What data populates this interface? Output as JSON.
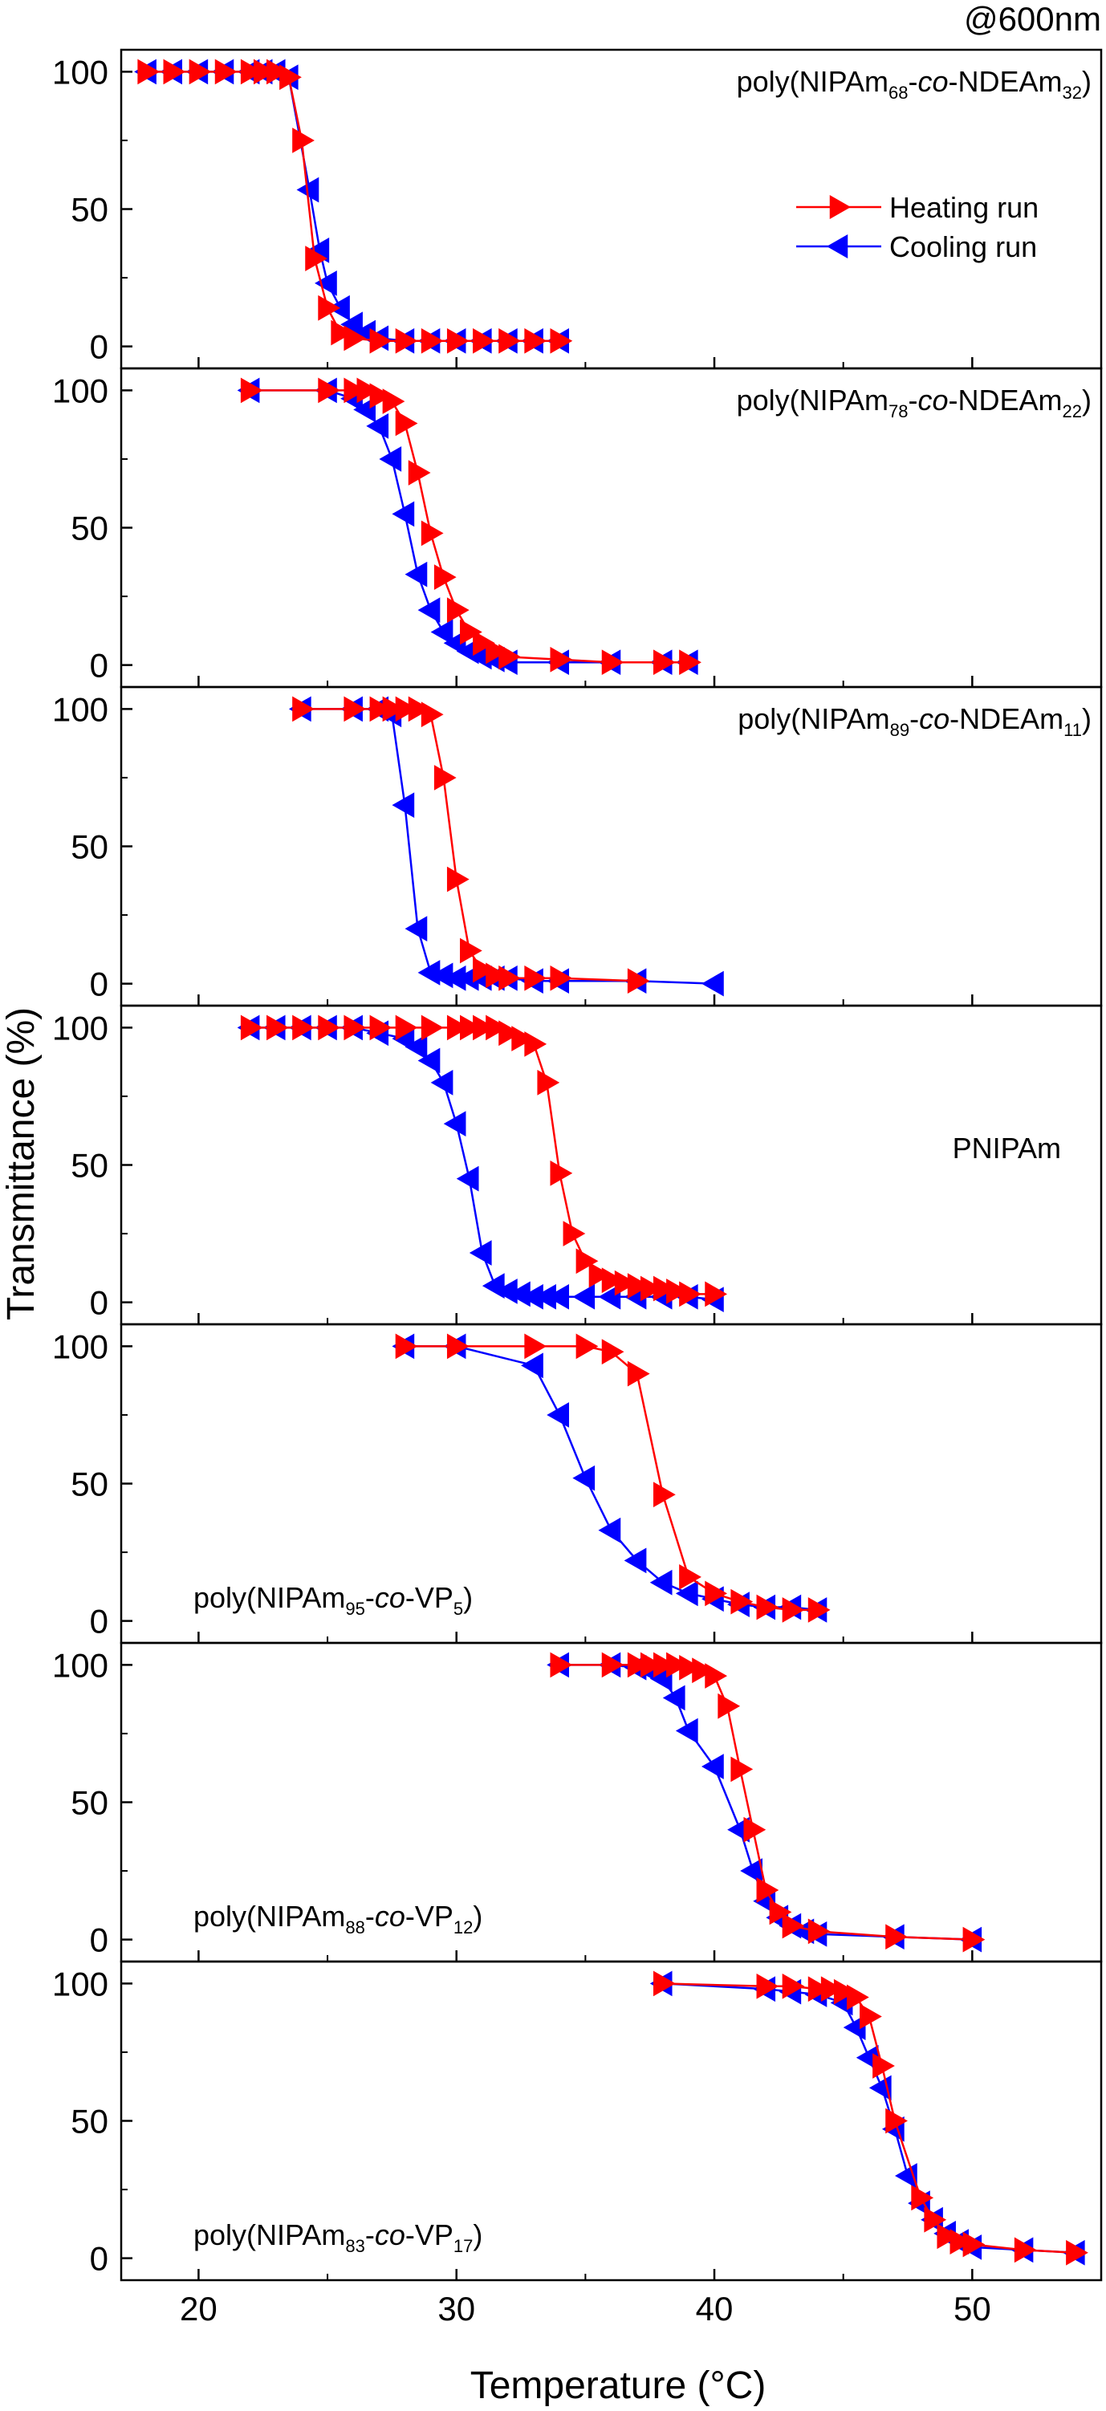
{
  "corner_label": "@600nm",
  "xlabel": "Temperature (°C)",
  "ylabel": "Transmittance (%)",
  "x_ticks": [
    20,
    30,
    40,
    50
  ],
  "y_ticks": [
    0,
    50,
    100
  ],
  "legend": {
    "heating": "Heating run",
    "cooling": "Cooling run",
    "placement": "top-right of first panel"
  },
  "colors": {
    "heating": "#ff0000",
    "cooling": "#0000ff"
  },
  "chart_data": [
    {
      "type": "line",
      "label": {
        "pre": "poly(NIPAm",
        "s1": "68",
        "mid": "-",
        "it": "co",
        "mid2": "-NDEAm",
        "s2": "32",
        "post": ")",
        "place": "top-right"
      },
      "xlim": [
        17,
        55
      ],
      "ylim": [
        -8,
        108
      ],
      "series": [
        {
          "name": "Heating run",
          "x": [
            18,
            19,
            20,
            21,
            22,
            22.5,
            23,
            23.5,
            24,
            24.5,
            25,
            25.5,
            26,
            27,
            28,
            29,
            30,
            31,
            32,
            33,
            34
          ],
          "y": [
            100,
            100,
            100,
            100,
            100,
            100,
            100,
            98,
            75,
            32,
            14,
            5,
            3,
            2,
            2,
            2,
            2,
            2,
            2,
            2,
            2
          ]
        },
        {
          "name": "Cooling run",
          "x": [
            34,
            33,
            32,
            31,
            30,
            29,
            28,
            27,
            26.5,
            26,
            25.5,
            25,
            24.7,
            24.3,
            23.5,
            23,
            22.5,
            22,
            21,
            20,
            19,
            18
          ],
          "y": [
            2,
            2,
            2,
            2,
            2,
            2,
            2,
            3,
            5,
            8,
            14,
            23,
            35,
            57,
            98,
            100,
            100,
            100,
            100,
            100,
            100,
            100
          ]
        }
      ]
    },
    {
      "type": "line",
      "label": {
        "pre": "poly(NIPAm",
        "s1": "78",
        "mid": "-",
        "it": "co",
        "mid2": "-NDEAm",
        "s2": "22",
        "post": ")",
        "place": "top-right"
      },
      "xlim": [
        17,
        55
      ],
      "ylim": [
        -8,
        108
      ],
      "series": [
        {
          "name": "Heating run",
          "x": [
            22,
            25,
            26,
            26.5,
            27,
            27.5,
            28,
            28.5,
            29,
            29.5,
            30,
            30.5,
            31,
            31.5,
            32,
            34,
            36,
            38,
            39
          ],
          "y": [
            100,
            100,
            100,
            100,
            98,
            96,
            88,
            70,
            48,
            32,
            20,
            12,
            8,
            5,
            3,
            2,
            1,
            1,
            1
          ]
        },
        {
          "name": "Cooling run",
          "x": [
            39,
            38,
            36,
            34,
            32,
            31.5,
            31,
            30.5,
            30,
            29.5,
            29,
            28.5,
            28,
            27.5,
            27,
            26.5,
            26,
            25,
            22
          ],
          "y": [
            1,
            1,
            1,
            1,
            1,
            2,
            3,
            5,
            8,
            12,
            20,
            33,
            55,
            75,
            87,
            93,
            97,
            100,
            100
          ]
        }
      ]
    },
    {
      "type": "line",
      "label": {
        "pre": "poly(NIPAm",
        "s1": "89",
        "mid": "-",
        "it": "co",
        "mid2": "-NDEAm",
        "s2": "11",
        "post": ")",
        "place": "top-right"
      },
      "xlim": [
        17,
        55
      ],
      "ylim": [
        -8,
        108
      ],
      "series": [
        {
          "name": "Heating run",
          "x": [
            24,
            26,
            27,
            27.5,
            28,
            28.5,
            29,
            29.5,
            30,
            30.5,
            31,
            31.5,
            32,
            33,
            34,
            37
          ],
          "y": [
            100,
            100,
            100,
            100,
            100,
            100,
            98,
            75,
            38,
            12,
            5,
            3,
            2,
            2,
            2,
            1
          ]
        },
        {
          "name": "Cooling run",
          "x": [
            40,
            37,
            34,
            33,
            32,
            31.5,
            31,
            30.5,
            30,
            29.5,
            29,
            28.5,
            28,
            27.5,
            27,
            26,
            24
          ],
          "y": [
            0,
            1,
            1,
            1,
            2,
            2,
            2,
            2,
            2,
            3,
            4,
            20,
            65,
            98,
            100,
            100,
            100
          ]
        }
      ]
    },
    {
      "type": "line",
      "label": {
        "pre": "PNIPAm",
        "s1": "",
        "mid": "",
        "it": "",
        "mid2": "",
        "s2": "",
        "post": "",
        "place": "mid-right"
      },
      "xlim": [
        17,
        55
      ],
      "ylim": [
        -8,
        108
      ],
      "series": [
        {
          "name": "Heating run",
          "x": [
            22,
            23,
            24,
            25,
            26,
            27,
            28,
            29,
            30,
            30.5,
            31,
            31.5,
            32,
            32.5,
            33,
            33.5,
            34,
            34.5,
            35,
            35.5,
            36,
            36.5,
            37,
            37.5,
            38,
            38.5,
            39,
            40
          ],
          "y": [
            100,
            100,
            100,
            100,
            100,
            100,
            100,
            100,
            100,
            100,
            100,
            100,
            98,
            96,
            94,
            80,
            47,
            25,
            15,
            10,
            8,
            7,
            6,
            5,
            5,
            4,
            3,
            3
          ]
        },
        {
          "name": "Cooling run",
          "x": [
            40,
            39,
            38,
            37,
            36,
            35,
            34,
            33.5,
            33,
            32.5,
            32,
            31.5,
            31,
            30.5,
            30,
            29.5,
            29,
            28.5,
            28,
            27,
            26,
            25,
            24,
            23,
            22
          ],
          "y": [
            1,
            2,
            2,
            2,
            2,
            2,
            2,
            2,
            2,
            3,
            4,
            6,
            18,
            45,
            65,
            80,
            88,
            93,
            96,
            98,
            100,
            100,
            100,
            100,
            100
          ]
        }
      ]
    },
    {
      "type": "line",
      "label": {
        "pre": "poly(NIPAm",
        "s1": "95",
        "mid": "-",
        "it": "co",
        "mid2": "-VP",
        "s2": "5",
        "post": ")",
        "place": "bottom-left"
      },
      "xlim": [
        17,
        55
      ],
      "ylim": [
        -8,
        108
      ],
      "series": [
        {
          "name": "Heating run",
          "x": [
            28,
            30,
            33,
            35,
            36,
            37,
            38,
            39,
            40,
            41,
            42,
            43,
            44
          ],
          "y": [
            100,
            100,
            100,
            100,
            98,
            90,
            46,
            16,
            10,
            7,
            5,
            4,
            4
          ]
        },
        {
          "name": "Cooling run",
          "x": [
            44,
            43,
            42,
            41,
            40,
            39,
            38,
            37,
            36,
            35,
            34,
            33,
            30,
            28
          ],
          "y": [
            4,
            5,
            5,
            6,
            8,
            10,
            14,
            22,
            33,
            52,
            75,
            93,
            100,
            100
          ]
        }
      ]
    },
    {
      "type": "line",
      "label": {
        "pre": "poly(NIPAm",
        "s1": "88",
        "mid": "-",
        "it": "co",
        "mid2": "-VP",
        "s2": "12",
        "post": ")",
        "place": "bottom-left"
      },
      "xlim": [
        17,
        55
      ],
      "ylim": [
        -8,
        108
      ],
      "series": [
        {
          "name": "Heating run",
          "x": [
            34,
            36,
            37,
            37.5,
            38,
            38.5,
            39,
            39.5,
            40,
            40.5,
            41,
            41.5,
            42,
            42.5,
            43,
            44,
            47,
            50
          ],
          "y": [
            100,
            100,
            100,
            100,
            100,
            100,
            99,
            98,
            96,
            85,
            62,
            40,
            18,
            10,
            5,
            3,
            1,
            0
          ]
        },
        {
          "name": "Cooling run",
          "x": [
            50,
            47,
            44,
            43.5,
            43,
            42.5,
            42,
            41.5,
            41,
            40,
            39,
            38.5,
            38,
            37.5,
            37,
            36,
            34
          ],
          "y": [
            0,
            1,
            2,
            3,
            5,
            8,
            14,
            25,
            40,
            63,
            76,
            88,
            95,
            98,
            99,
            100,
            100
          ]
        }
      ]
    },
    {
      "type": "line",
      "label": {
        "pre": "poly(NIPAm",
        "s1": "83",
        "mid": "-",
        "it": "co",
        "mid2": "-VP",
        "s2": "17",
        "post": ")",
        "place": "bottom-left"
      },
      "xlim": [
        17,
        55
      ],
      "ylim": [
        -8,
        108
      ],
      "series": [
        {
          "name": "Heating run",
          "x": [
            38,
            42,
            43,
            44,
            44.5,
            45,
            45.5,
            46,
            46.5,
            47,
            48,
            48.5,
            49,
            49.5,
            50,
            52,
            54
          ],
          "y": [
            100,
            99,
            99,
            98,
            98,
            97,
            95,
            88,
            70,
            50,
            22,
            14,
            8,
            6,
            5,
            3,
            2
          ]
        },
        {
          "name": "Cooling run",
          "x": [
            54,
            52,
            50,
            49.5,
            49,
            48.5,
            48,
            47.5,
            47,
            46.5,
            46,
            45.5,
            45,
            44,
            43,
            42,
            38
          ],
          "y": [
            2,
            3,
            4,
            6,
            9,
            14,
            20,
            30,
            47,
            62,
            73,
            84,
            93,
            96,
            97,
            98,
            100
          ]
        }
      ]
    }
  ]
}
